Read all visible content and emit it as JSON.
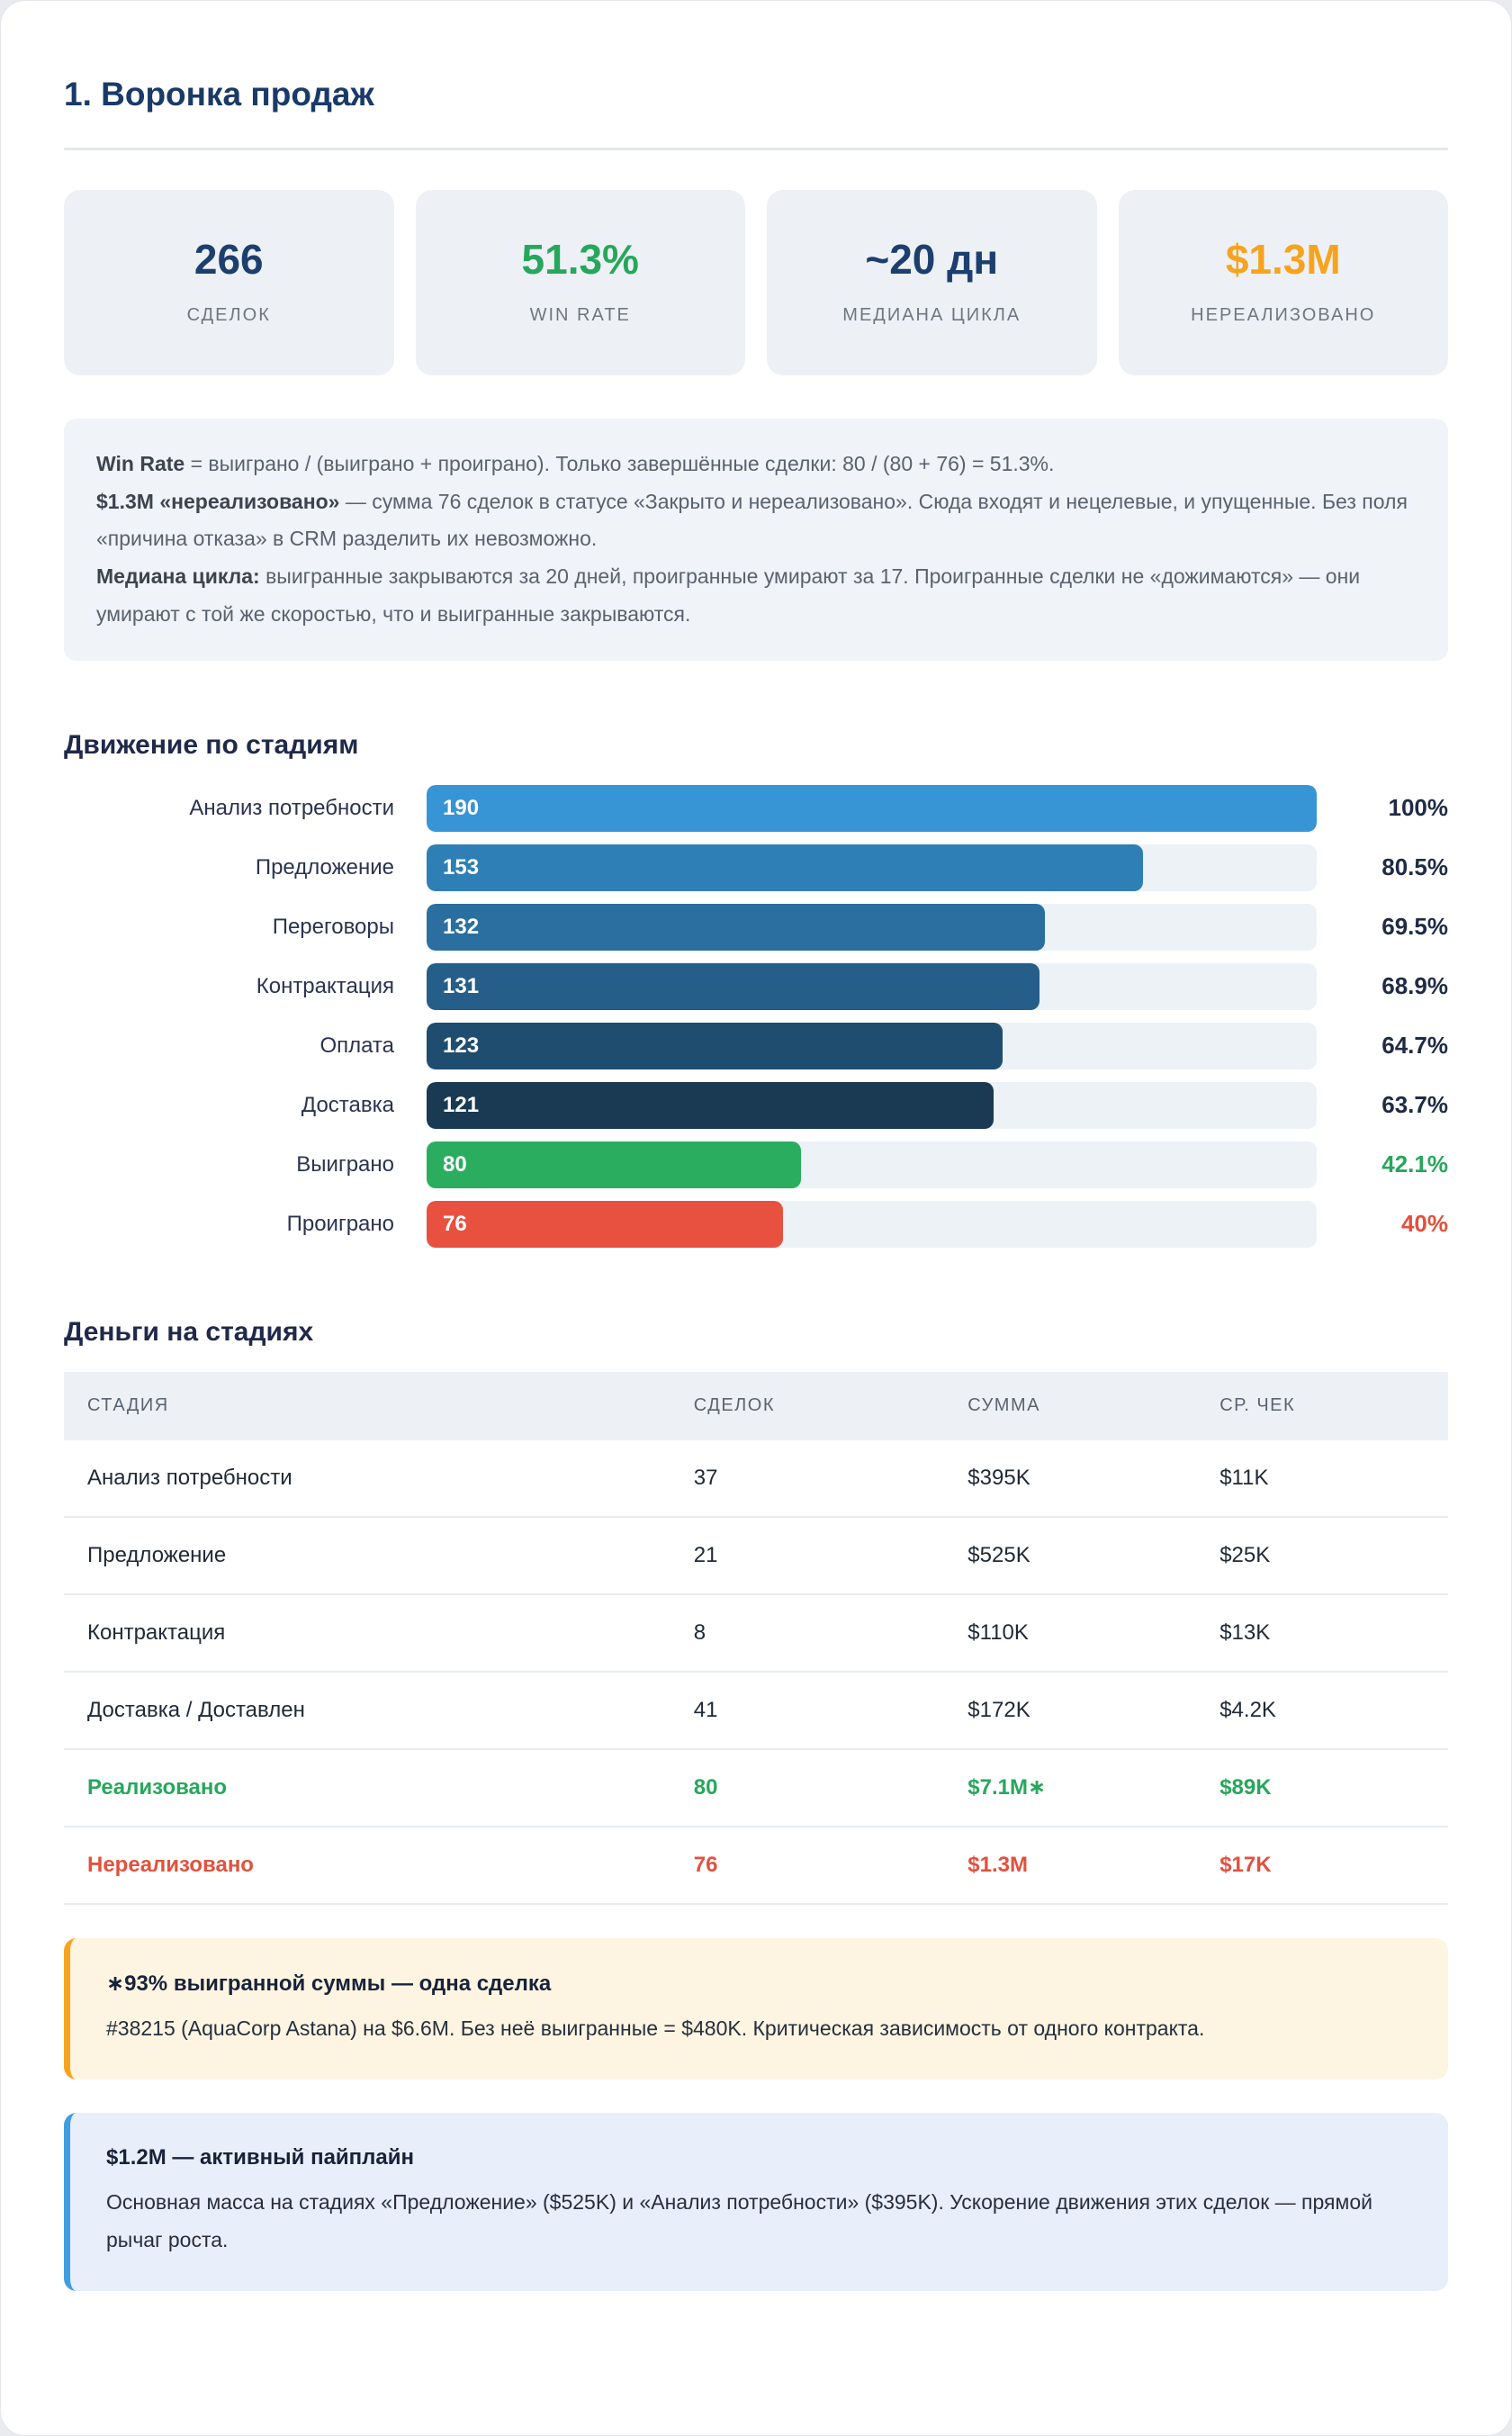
{
  "page_title": "1. Воронка продаж",
  "kpi_cards": [
    {
      "value": "266",
      "label": "СДЕЛОК",
      "value_color": "#1d3f6e"
    },
    {
      "value": "51.3%",
      "label": "WIN RATE",
      "value_color": "#27a75c"
    },
    {
      "value": "~20 дн",
      "label": "МЕДИАНА ЦИКЛА",
      "value_color": "#1d3f6e"
    },
    {
      "value": "$1.3M",
      "label": "НЕРЕАЛИЗОВАНО",
      "value_color": "#f6a31e"
    }
  ],
  "methodology_note": {
    "lines": [
      {
        "bold": "Win Rate",
        "text": " = выиграно / (выиграно + проиграно). Только завершённые сделки: 80 / (80 + 76) = 51.3%."
      },
      {
        "bold": "$1.3M «нереализовано»",
        "text": " — сумма 76 сделок в статусе «Закрыто и нереализовано». Сюда входят и нецелевые, и упущенные. Без поля «причина отказа» в CRM разделить их невозможно."
      },
      {
        "bold": "Медиана цикла:",
        "text": " выигранные закрываются за 20 дней, проигранные умирают за 17. Проигранные сделки не «дожимаются» — они умирают с той же скоростью, что и выигранные закрываются."
      }
    ]
  },
  "funnel_section": {
    "heading": "Движение по стадиям",
    "bars": [
      {
        "label": "Анализ потребности",
        "value": "190",
        "percent": "100%",
        "width_pct": 100,
        "bar_color": "#3795d6",
        "percent_color": "#1f2b45"
      },
      {
        "label": "Предложение",
        "value": "153",
        "percent": "80.5%",
        "width_pct": 80.5,
        "bar_color": "#2e7fb5",
        "percent_color": "#1f2b45"
      },
      {
        "label": "Переговоры",
        "value": "132",
        "percent": "69.5%",
        "width_pct": 69.5,
        "bar_color": "#2a6f9f",
        "percent_color": "#1f2b45"
      },
      {
        "label": "Контрактация",
        "value": "131",
        "percent": "68.9%",
        "width_pct": 68.9,
        "bar_color": "#255e88",
        "percent_color": "#1f2b45"
      },
      {
        "label": "Оплата",
        "value": "123",
        "percent": "64.7%",
        "width_pct": 64.7,
        "bar_color": "#1f4d6f",
        "percent_color": "#1f2b45"
      },
      {
        "label": "Доставка",
        "value": "121",
        "percent": "63.7%",
        "width_pct": 63.7,
        "bar_color": "#193a52",
        "percent_color": "#1f2b45"
      },
      {
        "label": "Выиграно",
        "value": "80",
        "percent": "42.1%",
        "width_pct": 42.1,
        "bar_color": "#2bad60",
        "percent_color": "#27a75c"
      },
      {
        "label": "Проиграно",
        "value": "76",
        "percent": "40%",
        "width_pct": 40,
        "bar_color": "#e8513f",
        "percent_color": "#e2503c"
      }
    ]
  },
  "money_section": {
    "heading": "Деньги на стадиях",
    "table": {
      "columns": [
        "СТАДИЯ",
        "СДЕЛОК",
        "СУММА",
        "СР. ЧЕК"
      ],
      "rows": [
        {
          "stage": "Анализ потребности",
          "deals": "37",
          "sum": "$395K",
          "avg": "$11K",
          "color": "#212a36",
          "weight": 400
        },
        {
          "stage": "Предложение",
          "deals": "21",
          "sum": "$525K",
          "avg": "$25K",
          "color": "#212a36",
          "weight": 400
        },
        {
          "stage": "Контрактация",
          "deals": "8",
          "sum": "$110K",
          "avg": "$13K",
          "color": "#212a36",
          "weight": 400
        },
        {
          "stage": "Доставка / Доставлен",
          "deals": "41",
          "sum": "$172K",
          "avg": "$4.2K",
          "color": "#212a36",
          "weight": 400
        },
        {
          "stage": "Реализовано",
          "deals": "80",
          "sum": "$7.1M∗",
          "avg": "$89K",
          "color": "#27a75c",
          "weight": 600
        },
        {
          "stage": "Нереализовано",
          "deals": "76",
          "sum": "$1.3M",
          "avg": "$17K",
          "color": "#e2513e",
          "weight": 600
        }
      ]
    }
  },
  "callouts": [
    {
      "accent": "#f6a41f",
      "bg": "#fdf5e1",
      "title": "∗93% выигранной суммы — одна сделка",
      "body": "#38215 (AquaCorp Astana) на $6.6M. Без неё выигранные = $480K. Критическая зависимость от одного контракта."
    },
    {
      "accent": "#3f9de2",
      "bg": "#e8effb",
      "title": "$1.2M — активный пайплайн",
      "body": "Основная масса на стадиях «Предложение» ($525K) и «Анализ потребности» ($395K). Ускорение движения этих сделок — прямой рычаг роста."
    }
  ],
  "chart_data": [
    {
      "type": "bar",
      "orientation": "horizontal",
      "title": "Движение по стадиям",
      "categories": [
        "Анализ потребности",
        "Предложение",
        "Переговоры",
        "Контрактация",
        "Оплата",
        "Доставка",
        "Выиграно",
        "Проиграно"
      ],
      "values": [
        190,
        153,
        132,
        131,
        123,
        121,
        80,
        76
      ],
      "percent_labels": [
        "100%",
        "80.5%",
        "69.5%",
        "68.9%",
        "64.7%",
        "63.7%",
        "42.1%",
        "40%"
      ],
      "bar_colors": [
        "#3795d6",
        "#2e7fb5",
        "#2a6f9f",
        "#255e88",
        "#1f4d6f",
        "#193a52",
        "#2bad60",
        "#e8513f"
      ],
      "xlim": [
        0,
        190
      ],
      "grid": false,
      "legend": false
    },
    {
      "type": "table",
      "title": "Деньги на стадиях",
      "columns": [
        "СТАДИЯ",
        "СДЕЛОК",
        "СУММА",
        "СР. ЧЕК"
      ],
      "rows": [
        [
          "Анализ потребности",
          37,
          "$395K",
          "$11K"
        ],
        [
          "Предложение",
          21,
          "$525K",
          "$25K"
        ],
        [
          "Контрактация",
          8,
          "$110K",
          "$13K"
        ],
        [
          "Доставка / Доставлен",
          41,
          "$172K",
          "$4.2K"
        ],
        [
          "Реализовано",
          80,
          "$7.1M∗",
          "$89K"
        ],
        [
          "Нереализовано",
          76,
          "$1.3M",
          "$17K"
        ]
      ]
    }
  ]
}
